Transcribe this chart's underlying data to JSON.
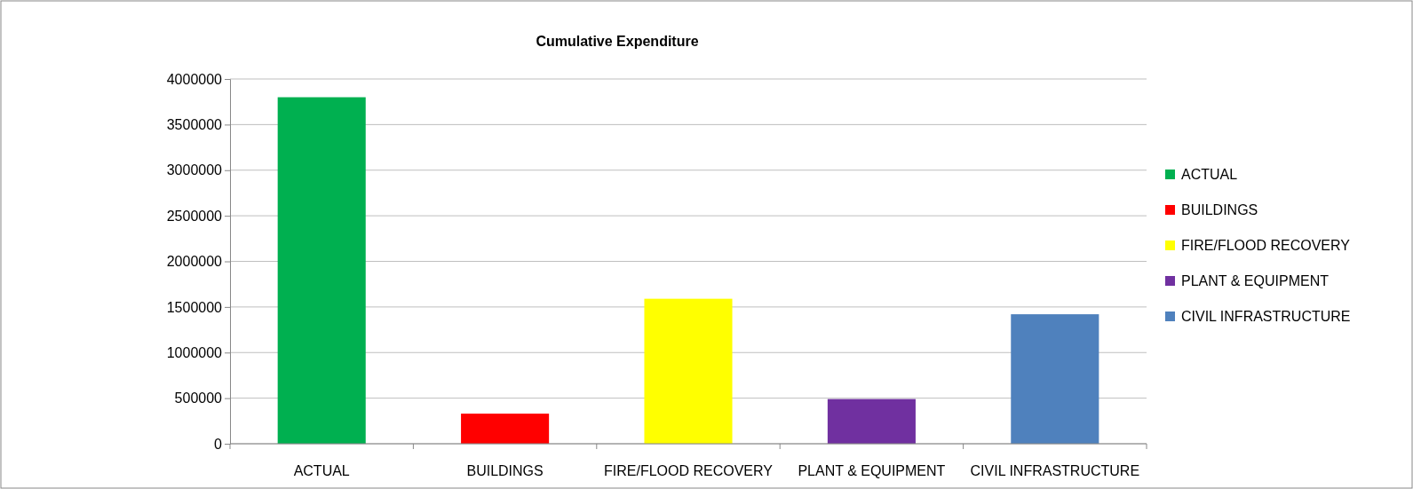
{
  "chart_data": {
    "type": "bar",
    "title": "Cumulative Expenditure",
    "categories": [
      "ACTUAL",
      "BUILDINGS",
      "FIRE/FLOOD RECOVERY",
      "PLANT & EQUIPMENT",
      "CIVIL INFRASTRUCTURE"
    ],
    "series": [
      {
        "name": "ACTUAL",
        "color": "#00b050",
        "values": [
          3800000,
          null,
          null,
          null,
          null
        ]
      },
      {
        "name": "BUILDINGS",
        "color": "#ff0000",
        "values": [
          null,
          330000,
          null,
          null,
          null
        ]
      },
      {
        "name": "FIRE/FLOOD RECOVERY",
        "color": "#ffff00",
        "values": [
          null,
          null,
          1590000,
          null,
          null
        ]
      },
      {
        "name": "PLANT & EQUIPMENT",
        "color": "#7030a0",
        "values": [
          null,
          null,
          null,
          490000,
          null
        ]
      },
      {
        "name": "CIVIL INFRASTRUCTURE",
        "color": "#4f81bd",
        "values": [
          null,
          null,
          null,
          null,
          1420000
        ]
      }
    ],
    "ylim": [
      0,
      4000000
    ],
    "yticks": [
      0,
      500000,
      1000000,
      1500000,
      2000000,
      2500000,
      3000000,
      3500000,
      4000000
    ],
    "grid": "y",
    "legend": "right"
  }
}
